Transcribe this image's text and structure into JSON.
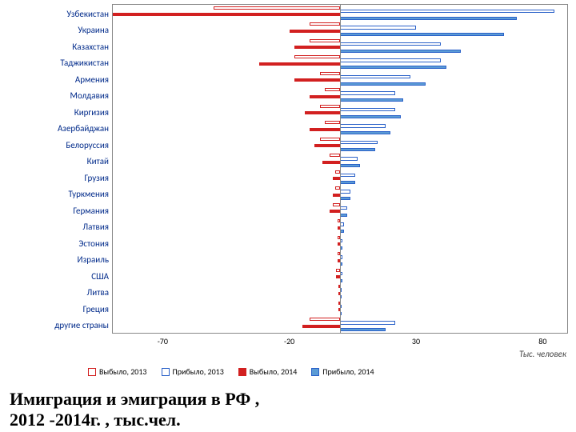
{
  "caption_line1": "Имиграция и эмиграция в РФ ,",
  "caption_line2": "2012 -2014г. , тыс.чел.",
  "xaxis_label": "Тыс. человек",
  "xlim": [
    -90,
    90
  ],
  "xticks": [
    -70,
    -20,
    30,
    80
  ],
  "xtick_labels": [
    "-70",
    "-20",
    "30",
    "80"
  ],
  "colors": {
    "out2013_fill": "#ffffff",
    "out2013_border": "#d22020",
    "in2013_fill": "#ffffff",
    "in2013_border": "#2b62c9",
    "out2014_fill": "#d22020",
    "out2014_border": "#d22020",
    "in2014_fill": "#5b9bd5",
    "in2014_border": "#2b62c9",
    "label_color": "#002a8a",
    "axis_color": "#888888"
  },
  "series_keys": [
    "out2013",
    "in2013",
    "out2014",
    "in2014"
  ],
  "legend": [
    {
      "key": "out2013",
      "label": "Выбыло, 2013"
    },
    {
      "key": "in2013",
      "label": "Прибыло, 2013"
    },
    {
      "key": "out2014",
      "label": "Выбыло, 2014"
    },
    {
      "key": "in2014",
      "label": "Прибыло, 2014"
    }
  ],
  "categories": [
    {
      "label": "Узбекистан",
      "out2013": -50,
      "in2013": 85,
      "out2014": -90,
      "in2014": 70
    },
    {
      "label": "Украина",
      "out2013": -12,
      "in2013": 30,
      "out2014": -20,
      "in2014": 65
    },
    {
      "label": "Казахстан",
      "out2013": -12,
      "in2013": 40,
      "out2014": -18,
      "in2014": 48
    },
    {
      "label": "Таджикистан",
      "out2013": -18,
      "in2013": 40,
      "out2014": -32,
      "in2014": 42
    },
    {
      "label": "Армения",
      "out2013": -8,
      "in2013": 28,
      "out2014": -18,
      "in2014": 34
    },
    {
      "label": "Молдавия",
      "out2013": -6,
      "in2013": 22,
      "out2014": -12,
      "in2014": 25
    },
    {
      "label": "Киргизия",
      "out2013": -8,
      "in2013": 22,
      "out2014": -14,
      "in2014": 24
    },
    {
      "label": "Азербайджан",
      "out2013": -6,
      "in2013": 18,
      "out2014": -12,
      "in2014": 20
    },
    {
      "label": "Белоруссия",
      "out2013": -8,
      "in2013": 15,
      "out2014": -10,
      "in2014": 14
    },
    {
      "label": "Китай",
      "out2013": -4,
      "in2013": 7,
      "out2014": -7,
      "in2014": 8
    },
    {
      "label": "Грузия",
      "out2013": -2,
      "in2013": 6,
      "out2014": -3,
      "in2014": 6
    },
    {
      "label": "Туркмения",
      "out2013": -2,
      "in2013": 4,
      "out2014": -3,
      "in2014": 4
    },
    {
      "label": "Германия",
      "out2013": -3,
      "in2013": 3,
      "out2014": -4,
      "in2014": 3
    },
    {
      "label": "Латвия",
      "out2013": -1,
      "in2013": 1.5,
      "out2014": -1,
      "in2014": 1.5
    },
    {
      "label": "Эстония",
      "out2013": -1,
      "in2013": 1,
      "out2014": -1,
      "in2014": 1
    },
    {
      "label": "Израиль",
      "out2013": -1,
      "in2013": 1,
      "out2014": -1,
      "in2014": 1
    },
    {
      "label": "США",
      "out2013": -1.5,
      "in2013": 1,
      "out2014": -1.5,
      "in2014": 1
    },
    {
      "label": "Литва",
      "out2013": -0.5,
      "in2013": 0.5,
      "out2014": -0.5,
      "in2014": 0.5
    },
    {
      "label": "Греция",
      "out2013": -0.5,
      "in2013": 0.5,
      "out2014": -0.5,
      "in2014": 0.5
    },
    {
      "label": "другие страны",
      "out2013": -12,
      "in2013": 22,
      "out2014": -15,
      "in2014": 18
    }
  ]
}
